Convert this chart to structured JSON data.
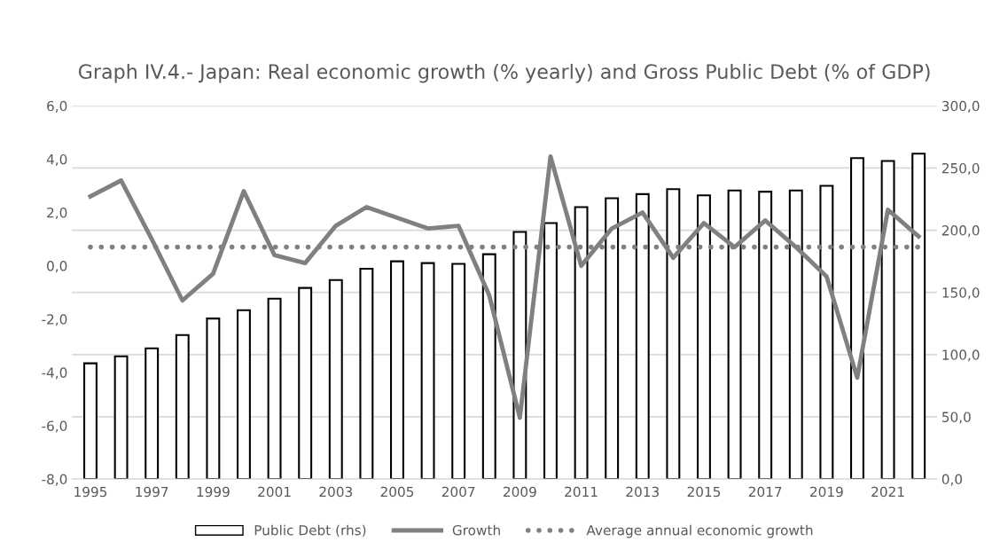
{
  "chart_data": {
    "type": "bar",
    "title": "Graph IV.4.- Japan: Real economic growth (% yearly) and Gross Public Debt (% of GDP)",
    "categories": [
      "1995",
      null,
      "1997",
      null,
      "1999",
      null,
      "2001",
      null,
      "2003",
      null,
      "2005",
      null,
      "2007",
      null,
      "2009",
      null,
      "2011",
      null,
      "2013",
      null,
      "2015",
      null,
      "2017",
      null,
      "2019",
      null,
      "2021",
      null
    ],
    "series": [
      {
        "name": "Public Debt (rhs)",
        "axis": "y2",
        "color": "#ffffff",
        "values": [
          93,
          98.6,
          105,
          115.7,
          129,
          135.7,
          145,
          153.6,
          160,
          169,
          175,
          173.6,
          173,
          180.7,
          198.6,
          205.7,
          218.6,
          225.7,
          229,
          233,
          228,
          232,
          231,
          232,
          235.7,
          258,
          255.7,
          261.5
        ]
      },
      {
        "name": "Growth",
        "type": "line",
        "color": "#808080",
        "values": [
          2.6,
          3.2,
          1.0,
          -1.3,
          -0.3,
          2.8,
          0.4,
          0.1,
          1.5,
          2.2,
          1.8,
          1.4,
          1.5,
          -1.1,
          -5.7,
          4.1,
          0.0,
          1.4,
          2.0,
          0.3,
          1.6,
          0.7,
          1.7,
          0.7,
          -0.4,
          -4.2,
          2.1,
          1.1
        ]
      },
      {
        "name": "Average annual economic growth",
        "type": "line",
        "line_style": "dotted",
        "color": "#808080",
        "values": [
          0.7,
          0.7,
          0.7,
          0.7,
          0.7,
          0.7,
          0.7,
          0.7,
          0.7,
          0.7,
          0.7,
          0.7,
          0.7,
          0.7,
          0.7,
          0.7,
          0.7,
          0.7,
          0.7,
          0.7,
          0.7,
          0.7,
          0.7,
          0.7,
          0.7,
          0.7,
          0.7,
          0.7
        ]
      }
    ],
    "ylim": [
      -8,
      6
    ],
    "yticks": [
      {
        "value": -8,
        "label": "-8,0"
      },
      {
        "value": -6,
        "label": "-6,0"
      },
      {
        "value": -4,
        "label": "-4,0"
      },
      {
        "value": -2,
        "label": "-2,0"
      },
      {
        "value": 0,
        "label": "0,0"
      },
      {
        "value": 2,
        "label": "2,0"
      },
      {
        "value": 4,
        "label": "4,0"
      },
      {
        "value": 6,
        "label": "6,0"
      }
    ],
    "y2lim": [
      0,
      300
    ],
    "y2ticks": [
      {
        "value": 0,
        "label": "0,0"
      },
      {
        "value": 50,
        "label": "50,0"
      },
      {
        "value": 100,
        "label": "100,0"
      },
      {
        "value": 150,
        "label": "150,0"
      },
      {
        "value": 200,
        "label": "200,0"
      },
      {
        "value": 250,
        "label": "250,0"
      },
      {
        "value": 300,
        "label": "300,0"
      }
    ],
    "grid": "y",
    "legend": "bottom"
  }
}
